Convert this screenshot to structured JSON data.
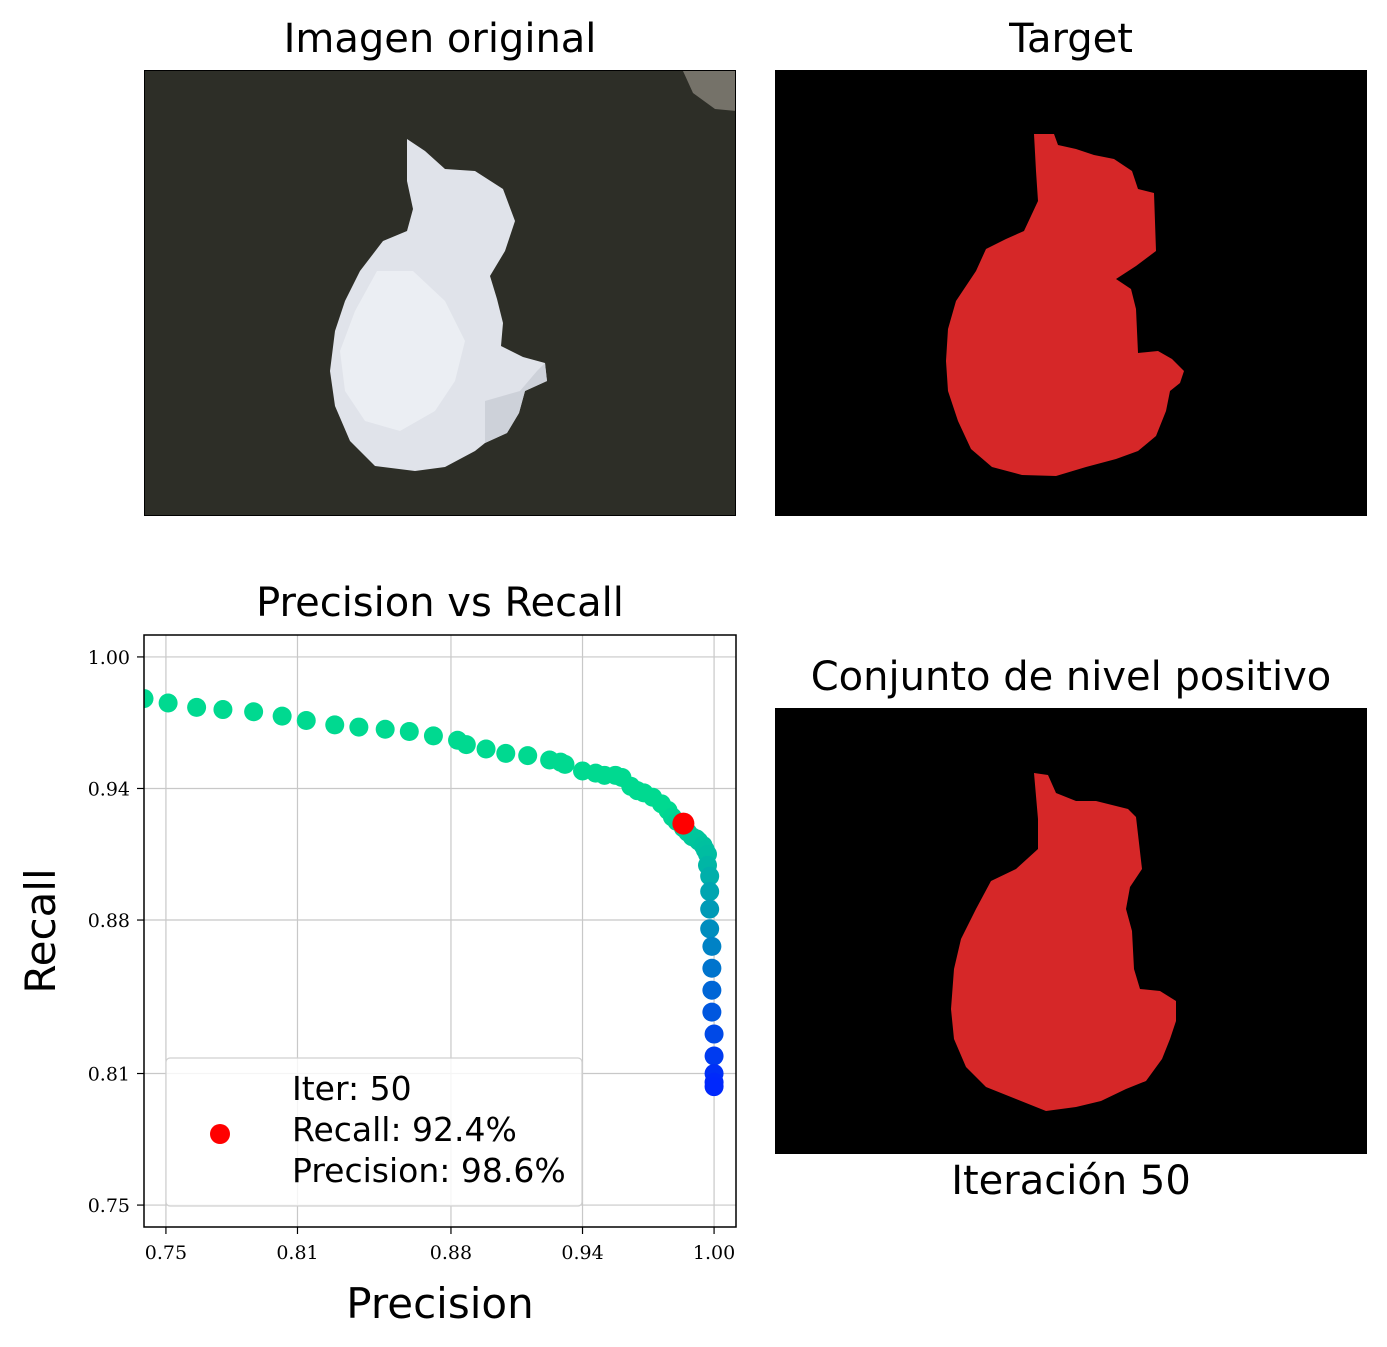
{
  "panels": {
    "original": {
      "title": "Imagen original"
    },
    "target": {
      "title": "Target"
    },
    "level_set": {
      "title": "Conjunto de nivel positivo",
      "caption": "Iteración 50"
    }
  },
  "colors": {
    "background_image": "#2c2d26",
    "animal": "#e4e7ee",
    "mask": "#d62728",
    "mask_background": "#000000",
    "grid": "#c8c8c8",
    "marker_current": "#ff0000",
    "curve_start": "#00d990",
    "curve_end": "#0022ff"
  },
  "chart_data": {
    "type": "scatter",
    "title": "Precision vs Recall",
    "xlabel": "Precision",
    "ylabel": "Recall",
    "xlim": [
      0.74,
      1.01
    ],
    "ylim": [
      0.74,
      1.01
    ],
    "xticks": [
      "0.75",
      "0.81",
      "0.88",
      "0.94",
      "1.00"
    ],
    "yticks": [
      "0.75",
      "0.81",
      "0.88",
      "0.94",
      "1.00"
    ],
    "grid": true,
    "colormap": "winter",
    "series": [
      {
        "points": [
          [
            0.74,
            0.981
          ],
          [
            0.751,
            0.979
          ],
          [
            0.764,
            0.977
          ],
          [
            0.776,
            0.976
          ],
          [
            0.79,
            0.975
          ],
          [
            0.803,
            0.973
          ],
          [
            0.814,
            0.971
          ],
          [
            0.827,
            0.969
          ],
          [
            0.838,
            0.968
          ],
          [
            0.85,
            0.967
          ],
          [
            0.861,
            0.966
          ],
          [
            0.872,
            0.964
          ],
          [
            0.883,
            0.962
          ],
          [
            0.887,
            0.96
          ],
          [
            0.896,
            0.958
          ],
          [
            0.905,
            0.956
          ],
          [
            0.915,
            0.955
          ],
          [
            0.925,
            0.953
          ],
          [
            0.93,
            0.952
          ],
          [
            0.932,
            0.951
          ],
          [
            0.94,
            0.948
          ],
          [
            0.946,
            0.947
          ],
          [
            0.95,
            0.946
          ],
          [
            0.955,
            0.946
          ],
          [
            0.958,
            0.945
          ],
          [
            0.962,
            0.941
          ],
          [
            0.965,
            0.939
          ],
          [
            0.968,
            0.938
          ],
          [
            0.972,
            0.936
          ],
          [
            0.976,
            0.933
          ],
          [
            0.979,
            0.93
          ],
          [
            0.981,
            0.927
          ],
          [
            0.983,
            0.925
          ],
          [
            0.985,
            0.924
          ],
          [
            0.986,
            0.922
          ],
          [
            0.988,
            0.92
          ],
          [
            0.99,
            0.918
          ],
          [
            0.992,
            0.917
          ],
          [
            0.993,
            0.916
          ],
          [
            0.995,
            0.914
          ],
          [
            0.996,
            0.912
          ],
          [
            0.997,
            0.91
          ],
          [
            0.997,
            0.905
          ],
          [
            0.998,
            0.9
          ],
          [
            0.998,
            0.893
          ],
          [
            0.998,
            0.885
          ],
          [
            0.998,
            0.876
          ],
          [
            0.999,
            0.868
          ],
          [
            0.999,
            0.858
          ],
          [
            0.999,
            0.848
          ],
          [
            0.999,
            0.838
          ],
          [
            1.0,
            0.828
          ],
          [
            1.0,
            0.818
          ],
          [
            1.0,
            0.81
          ],
          [
            1.0,
            0.806
          ],
          [
            1.0,
            0.804
          ]
        ]
      }
    ],
    "highlight": {
      "x": 0.986,
      "y": 0.924
    },
    "legend": {
      "location": "lower-left",
      "lines": [
        "Iter: 50",
        "Recall: 92.4%",
        "Precision: 98.6%"
      ]
    }
  }
}
